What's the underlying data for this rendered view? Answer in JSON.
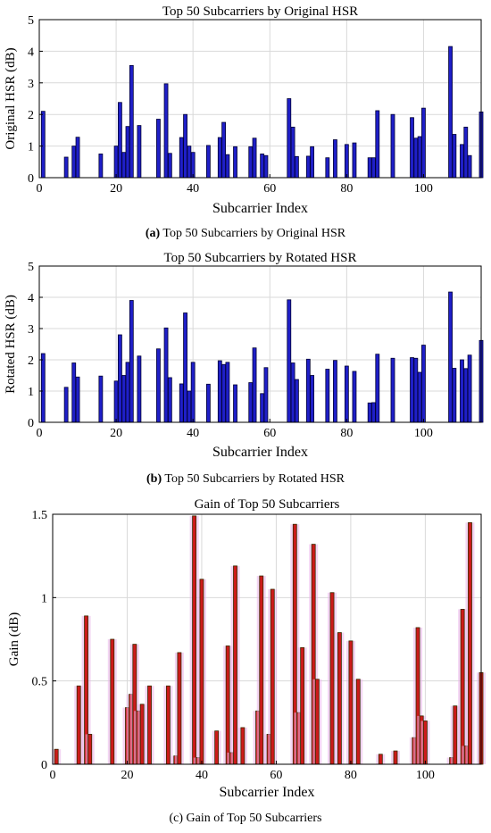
{
  "colors": {
    "bar_blue": "#1f1fc8",
    "bar_blue_edge": "#000033",
    "bar_red": "#cc1a1a",
    "bar_red_edge": "#3a2a00",
    "grid": "#d9d9d9",
    "red_glow": "#e9b3e9"
  },
  "chart_data": [
    {
      "type": "bar",
      "title": "Top 50 Subcarriers by Original HSR",
      "xlabel": "Subcarrier Index",
      "ylabel": "Original HSR (dB)",
      "xlim": [
        0,
        115
      ],
      "ylim": [
        0,
        5
      ],
      "xticks": [
        0,
        20,
        40,
        60,
        80,
        100
      ],
      "yticks": [
        0,
        1,
        2,
        3,
        4,
        5
      ],
      "grid": true,
      "caption_label": "(a)",
      "caption_text": "Top 50 Subcarriers by Original HSR",
      "x": [
        1,
        7,
        9,
        10,
        16,
        20,
        21,
        22,
        23,
        24,
        26,
        31,
        33,
        34,
        37,
        38,
        39,
        40,
        44,
        47,
        48,
        49,
        51,
        55,
        56,
        58,
        59,
        65,
        66,
        67,
        70,
        71,
        75,
        77,
        80,
        82,
        86,
        87,
        88,
        92,
        97,
        98,
        99,
        100,
        107,
        108,
        110,
        111,
        112,
        115
      ],
      "values": [
        2.1,
        0.65,
        1.0,
        1.28,
        0.75,
        1.0,
        2.38,
        0.8,
        1.62,
        3.55,
        1.65,
        1.85,
        2.97,
        0.77,
        1.27,
        2.0,
        1.0,
        0.8,
        1.02,
        1.27,
        1.75,
        0.73,
        0.98,
        0.98,
        1.25,
        0.75,
        0.7,
        2.5,
        1.6,
        0.67,
        0.68,
        0.98,
        0.63,
        1.2,
        1.05,
        1.1,
        0.63,
        0.63,
        2.12,
        2.0,
        1.9,
        1.25,
        1.3,
        2.2,
        4.15,
        1.37,
        1.05,
        1.6,
        0.7,
        2.08
      ]
    },
    {
      "type": "bar",
      "title": "Top 50 Subcarriers by Rotated HSR",
      "xlabel": "Subcarrier Index",
      "ylabel": "Rotated HSR (dB)",
      "xlim": [
        0,
        115
      ],
      "ylim": [
        0,
        5
      ],
      "xticks": [
        0,
        20,
        40,
        60,
        80,
        100
      ],
      "yticks": [
        0,
        1,
        2,
        3,
        4,
        5
      ],
      "grid": true,
      "caption_label": "(b)",
      "caption_text": "Top 50 Subcarriers by Rotated HSR",
      "x": [
        1,
        7,
        9,
        10,
        16,
        20,
        21,
        22,
        23,
        24,
        26,
        31,
        33,
        34,
        37,
        38,
        39,
        40,
        44,
        47,
        48,
        49,
        51,
        55,
        56,
        58,
        59,
        65,
        66,
        67,
        70,
        71,
        75,
        77,
        80,
        82,
        86,
        87,
        88,
        92,
        97,
        98,
        99,
        100,
        107,
        108,
        110,
        111,
        112,
        115
      ],
      "values": [
        2.2,
        1.12,
        1.9,
        1.45,
        1.48,
        1.32,
        2.8,
        1.5,
        1.92,
        3.9,
        2.12,
        2.35,
        3.02,
        1.43,
        1.23,
        3.5,
        1.0,
        1.92,
        1.22,
        1.97,
        1.85,
        1.92,
        1.2,
        1.27,
        2.38,
        0.92,
        1.75,
        3.92,
        1.9,
        1.37,
        2.02,
        1.5,
        1.7,
        1.98,
        1.8,
        1.63,
        0.62,
        0.63,
        2.18,
        2.05,
        2.07,
        2.05,
        1.6,
        2.47,
        4.17,
        1.73,
        2.0,
        1.72,
        2.15,
        2.62
      ]
    },
    {
      "type": "bar",
      "title": "Gain of Top 50 Subcarriers",
      "xlabel": "Subcarrier Index",
      "ylabel": "Gain (dB)",
      "xlim": [
        0,
        115
      ],
      "ylim": [
        0,
        1.5
      ],
      "xticks": [
        0,
        20,
        40,
        60,
        80,
        100
      ],
      "yticks": [
        0,
        0.5,
        1,
        1.5
      ],
      "ytick_labels": [
        "0",
        "0.5",
        "1",
        "1.5"
      ],
      "grid": true,
      "caption_label": "(c)",
      "caption_text": "Gain of Top 50 Subcarriers",
      "x": [
        1,
        7,
        9,
        10,
        16,
        20,
        21,
        22,
        23,
        24,
        26,
        31,
        33,
        34,
        37,
        38,
        39,
        40,
        44,
        47,
        48,
        49,
        51,
        55,
        56,
        58,
        59,
        65,
        66,
        67,
        70,
        71,
        75,
        77,
        80,
        82,
        86,
        87,
        88,
        92,
        97,
        98,
        99,
        100,
        107,
        108,
        110,
        111,
        112,
        115
      ],
      "values": [
        0.09,
        0.47,
        0.89,
        0.18,
        0.75,
        0.34,
        0.42,
        0.72,
        0.32,
        0.36,
        0.47,
        0.47,
        0.05,
        0.67,
        0.0,
        1.49,
        0.04,
        1.11,
        0.2,
        0.71,
        0.07,
        1.19,
        0.22,
        0.32,
        1.13,
        0.18,
        1.05,
        1.44,
        0.31,
        0.7,
        1.32,
        0.51,
        1.03,
        0.79,
        0.74,
        0.51,
        0.0,
        0.0,
        0.06,
        0.08,
        0.16,
        0.82,
        0.29,
        0.26,
        0.04,
        0.35,
        0.93,
        0.11,
        1.45,
        0.55
      ]
    }
  ]
}
